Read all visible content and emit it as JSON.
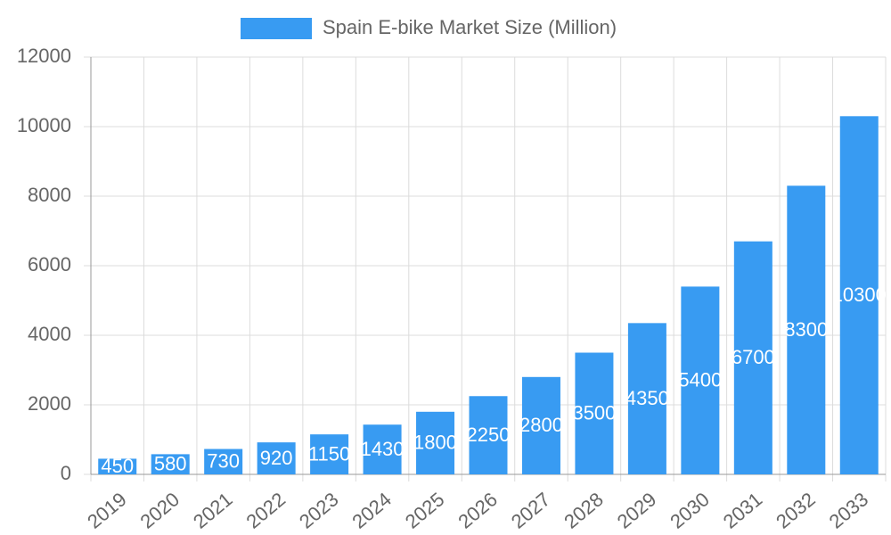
{
  "chart_data": {
    "type": "bar",
    "categories": [
      "2019",
      "2020",
      "2021",
      "2022",
      "2023",
      "2024",
      "2025",
      "2026",
      "2027",
      "2028",
      "2029",
      "2030",
      "2031",
      "2032",
      "2033"
    ],
    "series": [
      {
        "name": "Spain E-bike Market Size (Million)",
        "color": "#389bf2",
        "values": [
          450,
          580,
          730,
          920,
          1150,
          1430,
          1800,
          2250,
          2800,
          3500,
          4350,
          5400,
          6700,
          8300,
          10300
        ]
      }
    ],
    "ylim": [
      0,
      12000
    ],
    "yticks": [
      0,
      2000,
      4000,
      6000,
      8000,
      10000,
      12000
    ],
    "grid": true
  }
}
